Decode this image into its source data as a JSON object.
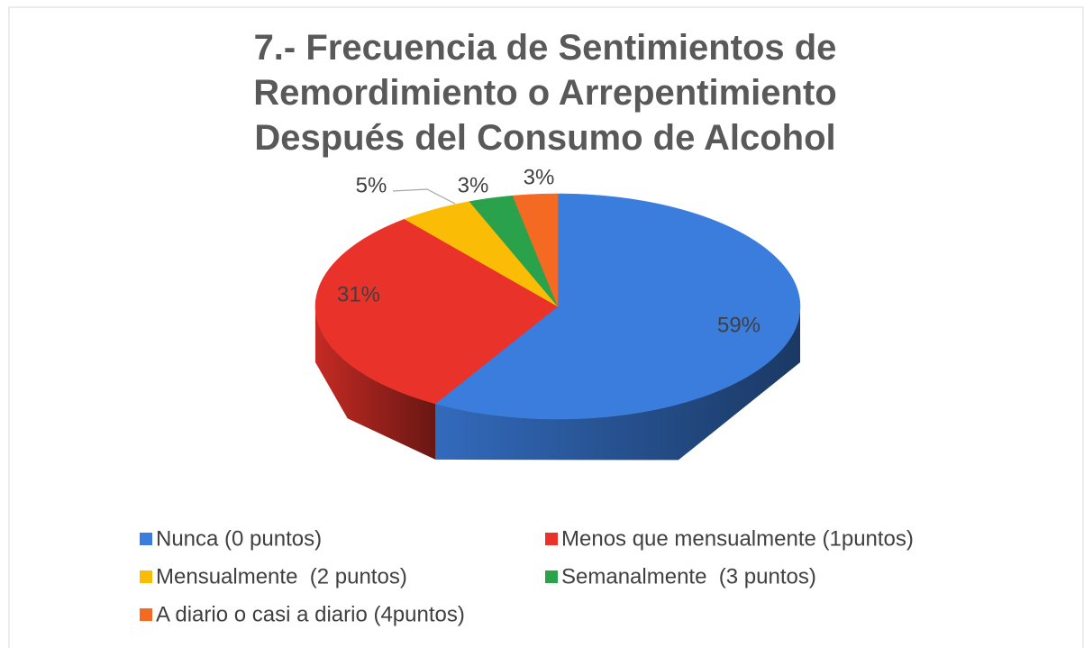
{
  "chart_data": {
    "type": "pie3d",
    "title": "7.- Frecuencia de Sentimientos de Remordimiento o Arrepentimiento Después del Consumo de Alcohol",
    "categories": [
      "Nunca (0 puntos)",
      "Menos que mensualmente (1puntos)",
      "Mensualmente  (2 puntos)",
      "Semanalmente  (3 puntos)",
      "A diario o casi a diario (4puntos)"
    ],
    "values": [
      59,
      31,
      5,
      3,
      3
    ],
    "value_labels": [
      "59%",
      "31%",
      "5%",
      "3%",
      "3%"
    ],
    "colors": [
      "#3b7ddd",
      "#e8322a",
      "#fbbc05",
      "#2aa24b",
      "#f56a23"
    ],
    "legend": "bottom"
  }
}
